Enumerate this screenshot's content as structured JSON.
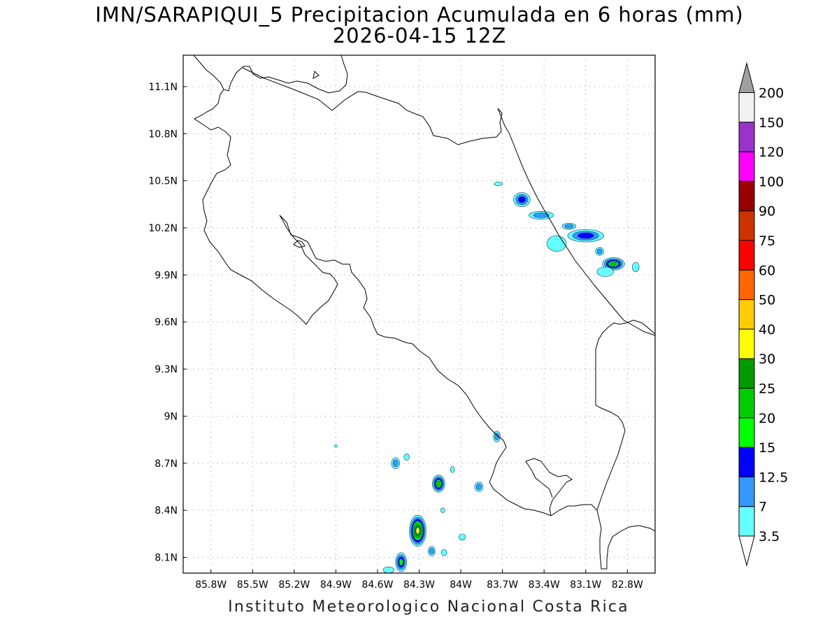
{
  "title": {
    "line1": "IMN/SARAPIQUI_5 Precipitacion Acumulada en 6 horas (mm)",
    "line2": "2026-04-15 12Z"
  },
  "footer": {
    "credit": "Instituto Meteorologico Nacional Costa Rica"
  },
  "map": {
    "lon_range": [
      -86.0,
      -82.6
    ],
    "lat_range": [
      8.0,
      11.3
    ],
    "lon_ticks": [
      {
        "value": -85.8,
        "label": "85.8W"
      },
      {
        "value": -85.5,
        "label": "85.5W"
      },
      {
        "value": -85.2,
        "label": "85.2W"
      },
      {
        "value": -84.9,
        "label": "84.9W"
      },
      {
        "value": -84.6,
        "label": "84.6W"
      },
      {
        "value": -84.3,
        "label": "84.3W"
      },
      {
        "value": -84.0,
        "label": "84W"
      },
      {
        "value": -83.7,
        "label": "83.7W"
      },
      {
        "value": -83.4,
        "label": "83.4W"
      },
      {
        "value": -83.1,
        "label": "83.1W"
      },
      {
        "value": -82.8,
        "label": "82.8W"
      }
    ],
    "lat_ticks": [
      {
        "value": 11.1,
        "label": "11.1N"
      },
      {
        "value": 10.8,
        "label": "10.8N"
      },
      {
        "value": 10.5,
        "label": "10.5N"
      },
      {
        "value": 10.2,
        "label": "10.2N"
      },
      {
        "value": 9.9,
        "label": "9.9N"
      },
      {
        "value": 9.6,
        "label": "9.6N"
      },
      {
        "value": 9.3,
        "label": "9.3N"
      },
      {
        "value": 9.0,
        "label": "9N"
      },
      {
        "value": 8.7,
        "label": "8.7N"
      },
      {
        "value": 8.4,
        "label": "8.4N"
      },
      {
        "value": 8.1,
        "label": "8.1N"
      }
    ],
    "grid": true,
    "grid_style": "dotted"
  },
  "colorbar": {
    "levels": [
      {
        "label": "3.5",
        "color": "#66ffff"
      },
      {
        "label": "7",
        "color": "#3399ff"
      },
      {
        "label": "12.5",
        "color": "#0000ff"
      },
      {
        "label": "15",
        "color": "#00ff00"
      },
      {
        "label": "20",
        "color": "#00cc00"
      },
      {
        "label": "25",
        "color": "#009900"
      },
      {
        "label": "30",
        "color": "#ffff00"
      },
      {
        "label": "40",
        "color": "#ffcc00"
      },
      {
        "label": "50",
        "color": "#ff6600"
      },
      {
        "label": "60",
        "color": "#ff0000"
      },
      {
        "label": "75",
        "color": "#cc3300"
      },
      {
        "label": "90",
        "color": "#990000"
      },
      {
        "label": "100",
        "color": "#ff00ff"
      },
      {
        "label": "120",
        "color": "#9933cc"
      },
      {
        "label": "150",
        "color": "#f2f2f2"
      },
      {
        "label": "200",
        "color": "#999999"
      }
    ],
    "under_color": "#ffffff",
    "over_color": "#a0a0a0"
  },
  "precip_cells": [
    {
      "lon": -83.73,
      "lat": 10.48,
      "rx": 0.03,
      "ry": 0.012,
      "max_level": 0
    },
    {
      "lon": -83.56,
      "lat": 10.38,
      "rx": 0.06,
      "ry": 0.045,
      "max_level": 2
    },
    {
      "lon": -83.42,
      "lat": 10.28,
      "rx": 0.09,
      "ry": 0.025,
      "max_level": 1
    },
    {
      "lon": -83.22,
      "lat": 10.21,
      "rx": 0.05,
      "ry": 0.02,
      "max_level": 1
    },
    {
      "lon": -83.1,
      "lat": 10.15,
      "rx": 0.13,
      "ry": 0.04,
      "max_level": 2
    },
    {
      "lon": -83.31,
      "lat": 10.1,
      "rx": 0.07,
      "ry": 0.05,
      "max_level": 0
    },
    {
      "lon": -83.0,
      "lat": 10.05,
      "rx": 0.03,
      "ry": 0.025,
      "max_level": 1
    },
    {
      "lon": -82.9,
      "lat": 9.97,
      "rx": 0.08,
      "ry": 0.04,
      "max_level": 4
    },
    {
      "lon": -82.96,
      "lat": 9.92,
      "rx": 0.06,
      "ry": 0.03,
      "max_level": 0
    },
    {
      "lon": -82.74,
      "lat": 9.95,
      "rx": 0.025,
      "ry": 0.03,
      "max_level": 0
    },
    {
      "lon": -83.74,
      "lat": 8.87,
      "rx": 0.025,
      "ry": 0.035,
      "max_level": 1
    },
    {
      "lon": -84.39,
      "lat": 8.74,
      "rx": 0.02,
      "ry": 0.02,
      "max_level": 0
    },
    {
      "lon": -84.47,
      "lat": 8.7,
      "rx": 0.03,
      "ry": 0.035,
      "max_level": 1
    },
    {
      "lon": -84.16,
      "lat": 8.57,
      "rx": 0.045,
      "ry": 0.055,
      "max_level": 4
    },
    {
      "lon": -84.06,
      "lat": 8.66,
      "rx": 0.015,
      "ry": 0.02,
      "max_level": 0
    },
    {
      "lon": -83.87,
      "lat": 8.55,
      "rx": 0.03,
      "ry": 0.03,
      "max_level": 1
    },
    {
      "lon": -84.13,
      "lat": 8.4,
      "rx": 0.015,
      "ry": 0.015,
      "max_level": 0
    },
    {
      "lon": -84.31,
      "lat": 8.27,
      "rx": 0.06,
      "ry": 0.1,
      "max_level": 6
    },
    {
      "lon": -84.21,
      "lat": 8.14,
      "rx": 0.025,
      "ry": 0.03,
      "max_level": 1
    },
    {
      "lon": -84.12,
      "lat": 8.13,
      "rx": 0.02,
      "ry": 0.02,
      "max_level": 0
    },
    {
      "lon": -83.99,
      "lat": 8.23,
      "rx": 0.025,
      "ry": 0.02,
      "max_level": 0
    },
    {
      "lon": -84.43,
      "lat": 8.07,
      "rx": 0.04,
      "ry": 0.06,
      "max_level": 3
    },
    {
      "lon": -84.52,
      "lat": 8.02,
      "rx": 0.04,
      "ry": 0.02,
      "max_level": 0
    },
    {
      "lon": -84.9,
      "lat": 8.81,
      "rx": 0.01,
      "ry": 0.01,
      "max_level": 0
    }
  ]
}
